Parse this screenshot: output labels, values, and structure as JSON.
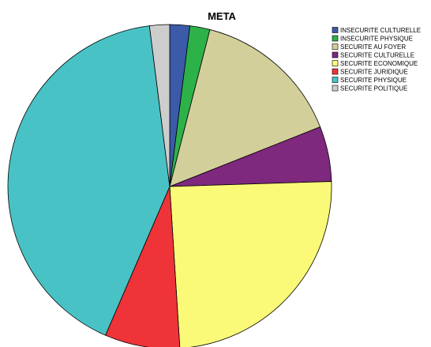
{
  "chart_data": {
    "type": "pie",
    "title": "META",
    "legend_position": "top-right",
    "start": "12 o'clock",
    "direction": "clockwise",
    "slices": [
      {
        "label": "INSECURITE CULTURELLE",
        "value": 2.0,
        "color": "#3b5aa8"
      },
      {
        "label": "INSECURITE PHYSIQUE",
        "value": 2.0,
        "color": "#2db24a"
      },
      {
        "label": "SECURITE AU FOYER",
        "value": 15.0,
        "color": "#d3cf9a"
      },
      {
        "label": "SECURITE CULTURELLE",
        "value": 5.5,
        "color": "#7e287e"
      },
      {
        "label": "SECURITE ECONOMIQUE",
        "value": 24.5,
        "color": "#fafa78"
      },
      {
        "label": "SECURITE JURIDIQUE",
        "value": 7.5,
        "color": "#ee3438"
      },
      {
        "label": "SECURITE PHYSIQUE",
        "value": 41.5,
        "color": "#49c2c5"
      },
      {
        "label": "SECURITE POLITIQUE",
        "value": 2.0,
        "color": "#cdcdcd"
      }
    ]
  }
}
